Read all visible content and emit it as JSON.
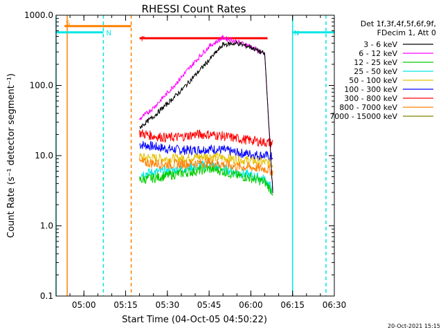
{
  "chart_data": {
    "type": "line",
    "title": "RHESSI Count Rates",
    "xlabel": "Start Time (04-Oct-05 04:50:22)",
    "ylabel": "Count Rate (s⁻¹ detector segment⁻¹)",
    "yscale": "log",
    "ylim": [
      0.1,
      1000
    ],
    "xlim": [
      "04:50",
      "06:30"
    ],
    "x_ticks": [
      "05:00",
      "05:15",
      "05:30",
      "05:45",
      "06:00",
      "06:15",
      "06:30"
    ],
    "y_ticks": [
      "0.1",
      "1.0",
      "10.0",
      "100.0",
      "1000.0"
    ],
    "legend_header": [
      "Det 1f,3f,4f,5f,6f,9f,",
      "FDecim 1, Att 0"
    ],
    "legend_position": "right",
    "timestamp": "20-Oct-2021 15:15",
    "series": [
      {
        "name": "3 - 6 keV",
        "color": "#000000",
        "x": [
          "05:20",
          "05:25",
          "05:30",
          "05:35",
          "05:40",
          "05:45",
          "05:50",
          "05:55",
          "06:00",
          "06:05",
          "06:08"
        ],
        "y": [
          25,
          36,
          55,
          85,
          140,
          230,
          380,
          400,
          350,
          280,
          2.5
        ]
      },
      {
        "name": "6 - 12 keV",
        "color": "#ff00ff",
        "x": [
          "05:20",
          "05:25",
          "05:30",
          "05:35",
          "05:40",
          "05:45",
          "05:50",
          "05:55",
          "06:00",
          "06:05",
          "06:08"
        ],
        "y": [
          33,
          48,
          78,
          130,
          220,
          360,
          480,
          420,
          360,
          270,
          2.5
        ]
      },
      {
        "name": "12 - 25 keV",
        "color": "#00cc00",
        "x": [
          "05:20",
          "05:25",
          "05:30",
          "05:35",
          "05:40",
          "05:45",
          "05:50",
          "05:55",
          "06:00",
          "06:05",
          "06:08"
        ],
        "y": [
          4.5,
          4.8,
          5.2,
          5.6,
          6.0,
          6.5,
          6.0,
          5.2,
          4.8,
          4.2,
          3.0
        ]
      },
      {
        "name": "25 - 50 keV",
        "color": "#00e5e5",
        "x": [
          "05:20",
          "05:25",
          "05:30",
          "05:35",
          "05:40",
          "05:45",
          "05:50",
          "05:55",
          "06:00",
          "06:05",
          "06:08"
        ],
        "y": [
          5.5,
          5.8,
          6.0,
          6.5,
          7.0,
          7.5,
          6.5,
          5.8,
          5.2,
          4.6,
          3.2
        ]
      },
      {
        "name": "50 - 100 keV",
        "color": "#e5c000",
        "x": [
          "05:20",
          "05:25",
          "05:30",
          "05:35",
          "05:40",
          "05:45",
          "05:50",
          "05:55",
          "06:00",
          "06:05",
          "06:08"
        ],
        "y": [
          9.5,
          9.2,
          9.0,
          9.2,
          9.5,
          9.8,
          9.3,
          8.8,
          8.5,
          8.0,
          7.5
        ]
      },
      {
        "name": "100 - 300 keV",
        "color": "#0000ff",
        "x": [
          "05:20",
          "05:25",
          "05:30",
          "05:35",
          "05:40",
          "05:45",
          "05:50",
          "05:55",
          "06:00",
          "06:05",
          "06:08"
        ],
        "y": [
          14.5,
          13.5,
          12.5,
          12.0,
          12.0,
          12.5,
          12.0,
          11.0,
          10.5,
          10.0,
          9.5
        ]
      },
      {
        "name": "300 - 800 keV",
        "color": "#ff0000",
        "x": [
          "05:20",
          "05:25",
          "05:30",
          "05:35",
          "05:40",
          "05:45",
          "05:50",
          "05:55",
          "06:00",
          "06:05",
          "06:08"
        ],
        "y": [
          21,
          19,
          18,
          18.5,
          20,
          20,
          19,
          17.5,
          16.5,
          15.5,
          15
        ]
      },
      {
        "name": "800 - 7000 keV",
        "color": "#ff8000",
        "x": [
          "05:20",
          "05:25",
          "05:30",
          "05:35",
          "05:40",
          "05:45",
          "05:50",
          "05:55",
          "06:00",
          "06:05",
          "06:08"
        ],
        "y": [
          8.0,
          7.8,
          7.5,
          7.6,
          7.8,
          8.0,
          7.5,
          7.0,
          6.8,
          6.5,
          6.0
        ]
      },
      {
        "name": "7000 - 15000 keV",
        "color": "#808000",
        "x": [],
        "y": []
      }
    ],
    "attenuator_markers": [
      {
        "label": "S",
        "color": "#ff8000",
        "x": [
          "04:53",
          "05:17"
        ],
        "level": 700,
        "line": "solid"
      },
      {
        "label": "N",
        "color": "#00e5e5",
        "x": [
          "04:50",
          "05:07"
        ],
        "level": 570,
        "line": "solid"
      },
      {
        "label": "N",
        "color": "#00e5e5",
        "x": [
          "06:15",
          "06:30"
        ],
        "level": 570,
        "line": "solid"
      },
      {
        "label": "F",
        "color": "#ff0000",
        "x": [
          "05:20",
          "06:06"
        ],
        "level": 470,
        "line": "solid"
      }
    ],
    "vertical_markers": [
      {
        "x": "04:50",
        "color": "#00e5e5",
        "style": "solid"
      },
      {
        "x": "04:54",
        "color": "#ff8000",
        "style": "solid"
      },
      {
        "x": "05:07",
        "color": "#00e5e5",
        "style": "dashed"
      },
      {
        "x": "05:17",
        "color": "#ff8000",
        "style": "dashed"
      },
      {
        "x": "06:15",
        "color": "#00e5e5",
        "style": "solid"
      },
      {
        "x": "06:27",
        "color": "#00e5e5",
        "style": "dashed"
      }
    ]
  }
}
